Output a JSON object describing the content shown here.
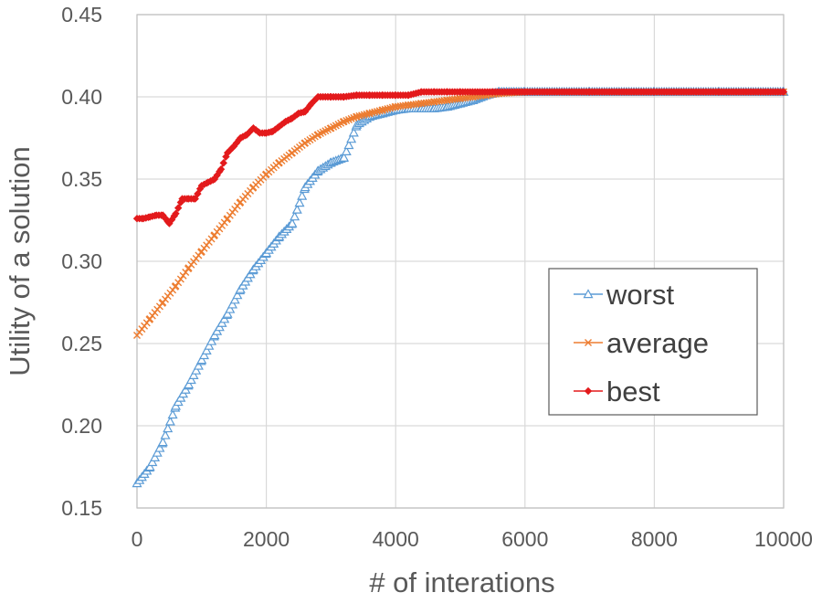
{
  "chart_data": {
    "type": "line",
    "title": "",
    "xlabel": "# of interations",
    "ylabel": "Utility of a solution",
    "xlim": [
      0,
      10000
    ],
    "ylim": [
      0.15,
      0.45
    ],
    "xticks": [
      0,
      2000,
      4000,
      6000,
      8000,
      10000
    ],
    "xtick_labels": [
      "0",
      "2000",
      "4000",
      "6000",
      "8000",
      "10000"
    ],
    "yticks": [
      0.15,
      0.2,
      0.25,
      0.3,
      0.35,
      0.4,
      0.45
    ],
    "ytick_labels": [
      "0.15",
      "0.20",
      "0.25",
      "0.30",
      "0.35",
      "0.40",
      "0.45"
    ],
    "grid": true,
    "legend_position": "right-center",
    "series": [
      {
        "name": "worst",
        "color": "#5b9bd5",
        "marker": "triangle",
        "x": [
          0,
          200,
          400,
          600,
          800,
          1000,
          1200,
          1400,
          1600,
          1800,
          2000,
          2200,
          2400,
          2600,
          2800,
          3000,
          3200,
          3400,
          3600,
          3800,
          4000,
          4200,
          4400,
          4600,
          4800,
          5000,
          5200,
          5400,
          5600,
          6000,
          7000,
          8000,
          9000,
          10000
        ],
        "y": [
          0.165,
          0.175,
          0.19,
          0.212,
          0.225,
          0.24,
          0.255,
          0.268,
          0.283,
          0.295,
          0.305,
          0.315,
          0.323,
          0.345,
          0.355,
          0.36,
          0.363,
          0.383,
          0.388,
          0.39,
          0.392,
          0.393,
          0.393,
          0.393,
          0.394,
          0.396,
          0.398,
          0.401,
          0.403,
          0.403,
          0.403,
          0.403,
          0.403,
          0.403
        ]
      },
      {
        "name": "average",
        "color": "#ed7d31",
        "marker": "x",
        "x": [
          0,
          200,
          400,
          600,
          800,
          1000,
          1200,
          1400,
          1600,
          1800,
          2000,
          2200,
          2400,
          2600,
          2800,
          3000,
          3200,
          3400,
          3600,
          3800,
          4000,
          4200,
          4400,
          4600,
          4800,
          5000,
          5200,
          5400,
          5600,
          6000,
          7000,
          8000,
          9000,
          10000
        ],
        "y": [
          0.255,
          0.265,
          0.275,
          0.285,
          0.296,
          0.306,
          0.316,
          0.326,
          0.336,
          0.345,
          0.353,
          0.36,
          0.366,
          0.372,
          0.377,
          0.381,
          0.385,
          0.388,
          0.39,
          0.392,
          0.394,
          0.395,
          0.396,
          0.397,
          0.398,
          0.399,
          0.4,
          0.401,
          0.402,
          0.403,
          0.403,
          0.403,
          0.403,
          0.403
        ]
      },
      {
        "name": "best",
        "color": "#e31a1c",
        "marker": "diamond",
        "x": [
          0,
          100,
          200,
          300,
          400,
          500,
          600,
          700,
          800,
          900,
          1000,
          1100,
          1200,
          1300,
          1400,
          1500,
          1600,
          1700,
          1800,
          1900,
          2000,
          2100,
          2200,
          2300,
          2400,
          2500,
          2600,
          2700,
          2800,
          3000,
          3200,
          3400,
          3600,
          3800,
          4000,
          4200,
          4400,
          4600,
          4800,
          5000,
          5500,
          6000,
          7000,
          8000,
          9000,
          10000
        ],
        "y": [
          0.326,
          0.326,
          0.327,
          0.328,
          0.328,
          0.323,
          0.329,
          0.338,
          0.338,
          0.338,
          0.346,
          0.348,
          0.35,
          0.356,
          0.366,
          0.37,
          0.375,
          0.377,
          0.381,
          0.378,
          0.378,
          0.379,
          0.382,
          0.385,
          0.387,
          0.39,
          0.391,
          0.396,
          0.4,
          0.4,
          0.4,
          0.401,
          0.401,
          0.401,
          0.401,
          0.401,
          0.403,
          0.403,
          0.403,
          0.403,
          0.403,
          0.403,
          0.403,
          0.403,
          0.403,
          0.403
        ]
      }
    ]
  }
}
